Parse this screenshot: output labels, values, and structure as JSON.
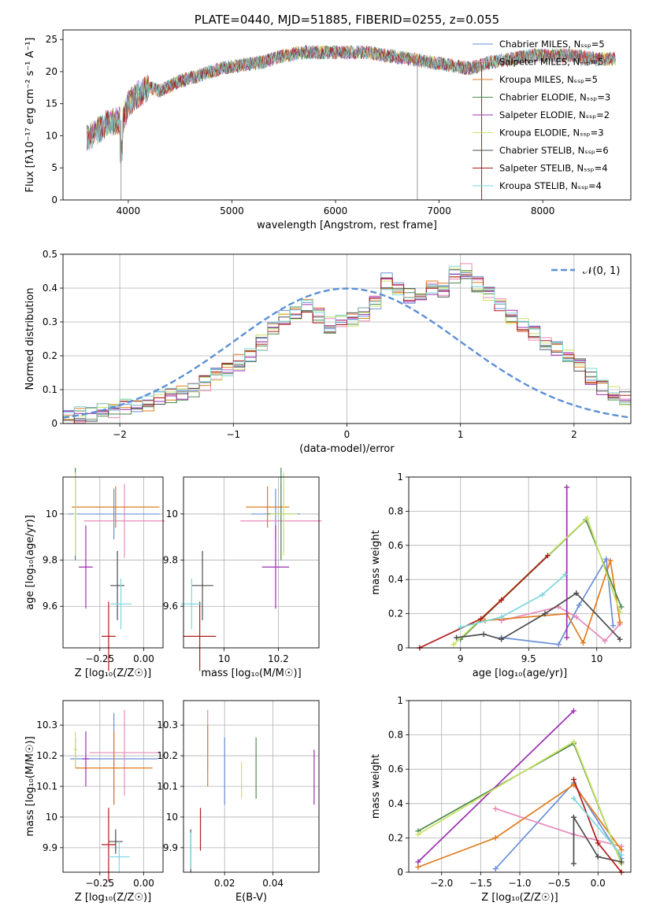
{
  "chart_data": [
    {
      "type": "line",
      "title": "PLATE=0440, MJD=51885, FIBERID=0255, z=0.055",
      "xlabel": "wavelength [Angstrom, rest frame]",
      "ylabel": "Flux [fλ10⁻¹⁷ erg cm⁻² s⁻¹ A⁻¹]",
      "xlim": [
        3370,
        8850
      ],
      "ylim": [
        0,
        26.5
      ],
      "xticks": [
        4000,
        5000,
        6000,
        7000,
        8000
      ],
      "yticks": [
        0,
        5,
        10,
        15,
        20,
        25
      ],
      "grid": false,
      "legend_position": "right",
      "series": [
        {
          "name": "Chabrier MILES, N_SSP=5",
          "color": "#6a8fd8"
        },
        {
          "name": "Salpeter MILES, N_SSP=5",
          "color": "#e88ab8"
        },
        {
          "name": "Kroupa MILES, N_SSP=5",
          "color": "#e07b1d"
        },
        {
          "name": "Chabrier ELODIE, N_SSP=3",
          "color": "#4e8a4e"
        },
        {
          "name": "Salpeter ELODIE, N_SSP=2",
          "color": "#9b30b0"
        },
        {
          "name": "Kroupa ELODIE, N_SSP=3",
          "color": "#c9e265"
        },
        {
          "name": "Chabrier STELIB, N_SSP=6",
          "color": "#4d4d4d"
        },
        {
          "name": "Salpeter STELIB, N_SSP=4",
          "color": "#b01c1c"
        },
        {
          "name": "Kroupa STELIB, N_SSP=4",
          "color": "#7fd7df"
        }
      ],
      "continuum": [
        [
          3600,
          9.5
        ],
        [
          3800,
          12
        ],
        [
          3950,
          12.5
        ],
        [
          4000,
          15
        ],
        [
          4100,
          16.5
        ],
        [
          4200,
          17.5
        ],
        [
          4300,
          17
        ],
        [
          4500,
          18.5
        ],
        [
          4700,
          19.5
        ],
        [
          4900,
          20.5
        ],
        [
          5100,
          21
        ],
        [
          5300,
          21.5
        ],
        [
          5500,
          22.5
        ],
        [
          5700,
          23
        ],
        [
          5900,
          23
        ],
        [
          6100,
          23
        ],
        [
          6300,
          23
        ],
        [
          6500,
          22.5
        ],
        [
          6700,
          22
        ],
        [
          6900,
          21.5
        ],
        [
          7100,
          21
        ],
        [
          7300,
          20.5
        ],
        [
          7500,
          21.5
        ],
        [
          7700,
          22
        ],
        [
          7900,
          22.5
        ],
        [
          8100,
          22.5
        ],
        [
          8300,
          22.5
        ],
        [
          8500,
          22
        ],
        [
          8700,
          22
        ]
      ],
      "spikes": [
        [
          3930,
          0
        ],
        [
          6790,
          0
        ],
        [
          7410,
          0
        ]
      ]
    },
    {
      "type": "bar",
      "xlabel": "(data-model)/error",
      "ylabel": "Normed distribution",
      "xlim": [
        -2.5,
        2.5
      ],
      "ylim": [
        0,
        0.5
      ],
      "xticks": [
        -2,
        -1,
        0,
        1,
        2
      ],
      "yticks": [
        0.0,
        0.1,
        0.2,
        0.3,
        0.4,
        0.5
      ],
      "grid": true,
      "legend_position": "upper right",
      "legend": "𝒩(0, 1)",
      "bin_width": 0.1,
      "histogram": [
        0.02,
        0.025,
        0.03,
        0.035,
        0.04,
        0.05,
        0.055,
        0.06,
        0.07,
        0.08,
        0.09,
        0.1,
        0.12,
        0.14,
        0.16,
        0.18,
        0.2,
        0.24,
        0.28,
        0.31,
        0.33,
        0.35,
        0.32,
        0.29,
        0.3,
        0.31,
        0.32,
        0.36,
        0.42,
        0.4,
        0.38,
        0.37,
        0.4,
        0.39,
        0.44,
        0.45,
        0.41,
        0.38,
        0.35,
        0.32,
        0.29,
        0.27,
        0.24,
        0.22,
        0.2,
        0.17,
        0.14,
        0.11,
        0.09,
        0.07
      ],
      "curve_color": "#5b8fd6"
    },
    {
      "type": "scatter",
      "xlabel": "Z [log₁₀(Z/Z☉)]",
      "ylabel": "age  [log₁₀(age/yr)]",
      "xlim": [
        -0.46,
        0.11
      ],
      "ylim": [
        9.42,
        10.16
      ],
      "xticks": [
        -0.25,
        0.0
      ],
      "xticklabels": [
        "−0.25",
        "0.00"
      ],
      "yticks": [
        9.6,
        9.8,
        10.0
      ],
      "grid": true,
      "points": [
        {
          "x": -0.17,
          "y": 10.0,
          "xerr": 0.26,
          "yerr": 0.11,
          "color": "#6a8fd8"
        },
        {
          "x": -0.11,
          "y": 9.97,
          "xerr": 0.23,
          "yerr": 0.16,
          "color": "#e88ab8"
        },
        {
          "x": -0.16,
          "y": 10.03,
          "xerr": 0.25,
          "yerr": 0.09,
          "color": "#e07b1d"
        },
        {
          "x": -0.39,
          "y": 10.0,
          "xerr": 0.0,
          "yerr": 0.2,
          "color": "#4e8a4e"
        },
        {
          "x": -0.33,
          "y": 9.77,
          "xerr": 0.04,
          "yerr": 0.18,
          "color": "#9b30b0"
        },
        {
          "x": -0.39,
          "y": 10.0,
          "xerr": 0.01,
          "yerr": 0.18,
          "color": "#c9e265"
        },
        {
          "x": -0.15,
          "y": 9.69,
          "xerr": 0.04,
          "yerr": 0.15,
          "color": "#4d4d4d"
        },
        {
          "x": -0.2,
          "y": 9.47,
          "xerr": 0.04,
          "yerr": 0.15,
          "color": "#b01c1c"
        },
        {
          "x": -0.13,
          "y": 9.61,
          "xerr": 0.06,
          "yerr": 0.11,
          "color": "#7fd7df"
        }
      ]
    },
    {
      "type": "scatter",
      "xlabel": "mass [log₁₀(M/M☉)]",
      "ylabel": "",
      "xlim": [
        9.85,
        10.35
      ],
      "ylim": [
        9.42,
        10.16
      ],
      "xticks": [
        10.0,
        10.2
      ],
      "yticks": [
        9.6,
        9.8,
        10.0
      ],
      "grid": true,
      "points": [
        {
          "x": 10.19,
          "y": 10.0,
          "xerr": 0.09,
          "yerr": 0.11,
          "color": "#6a8fd8"
        },
        {
          "x": 10.21,
          "y": 9.97,
          "xerr": 0.15,
          "yerr": 0.16,
          "color": "#e88ab8"
        },
        {
          "x": 10.16,
          "y": 10.03,
          "xerr": 0.08,
          "yerr": 0.09,
          "color": "#e07b1d"
        },
        {
          "x": 10.21,
          "y": 10.0,
          "xerr": 0.05,
          "yerr": 0.2,
          "color": "#4e8a4e"
        },
        {
          "x": 10.19,
          "y": 9.77,
          "xerr": 0.05,
          "yerr": 0.18,
          "color": "#9b30b0"
        },
        {
          "x": 10.22,
          "y": 10.0,
          "xerr": 0.05,
          "yerr": 0.18,
          "color": "#c9e265"
        },
        {
          "x": 9.92,
          "y": 9.69,
          "xerr": 0.04,
          "yerr": 0.15,
          "color": "#4d4d4d"
        },
        {
          "x": 9.91,
          "y": 9.47,
          "xerr": 0.06,
          "yerr": 0.15,
          "color": "#b01c1c"
        },
        {
          "x": 9.88,
          "y": 9.61,
          "xerr": 0.04,
          "yerr": 0.11,
          "color": "#7fd7df"
        }
      ]
    },
    {
      "type": "line",
      "xlabel": "age  [log₁₀(age/yr)]",
      "ylabel": "mass weight",
      "xlim": [
        8.62,
        10.25
      ],
      "ylim": [
        0.0,
        1.0
      ],
      "xticks": [
        9.0,
        9.5,
        10.0
      ],
      "yticks": [
        0.0,
        0.2,
        0.4,
        0.6,
        0.8,
        1.0
      ],
      "grid": true,
      "series": [
        {
          "color": "#6a8fd8",
          "points": [
            [
              9.3,
              0.06
            ],
            [
              9.72,
              0.02
            ],
            [
              9.87,
              0.25
            ],
            [
              10.07,
              0.52
            ],
            [
              10.12,
              0.13
            ]
          ]
        },
        {
          "color": "#e88ab8",
          "points": [
            [
              9.3,
              0.16
            ],
            [
              9.72,
              0.24
            ],
            [
              9.85,
              0.18
            ],
            [
              10.06,
              0.04
            ],
            [
              10.17,
              0.14
            ]
          ]
        },
        {
          "color": "#e07b1d",
          "points": [
            [
              9.18,
              0.16
            ],
            [
              9.78,
              0.2
            ],
            [
              9.9,
              0.03
            ],
            [
              10.1,
              0.51
            ],
            [
              10.17,
              0.15
            ]
          ]
        },
        {
          "color": "#4e8a4e",
          "points": [
            [
              9.0,
              0.05
            ],
            [
              9.92,
              0.75
            ],
            [
              10.18,
              0.24
            ]
          ]
        },
        {
          "color": "#9b30b0",
          "points": [
            [
              9.78,
              0.94
            ],
            [
              9.78,
              0.06
            ]
          ]
        },
        {
          "color": "#c9e265",
          "points": [
            [
              8.95,
              0.02
            ],
            [
              9.93,
              0.76
            ],
            [
              10.17,
              0.21
            ]
          ]
        },
        {
          "color": "#4d4d4d",
          "points": [
            [
              8.97,
              0.06
            ],
            [
              9.17,
              0.08
            ],
            [
              9.3,
              0.05
            ],
            [
              9.62,
              0.2
            ],
            [
              9.85,
              0.32
            ],
            [
              10.17,
              0.05
            ]
          ]
        },
        {
          "color": "#b01c1c",
          "points": [
            [
              8.7,
              0.0
            ],
            [
              9.15,
              0.17
            ],
            [
              9.3,
              0.28
            ],
            [
              9.64,
              0.54
            ]
          ]
        },
        {
          "color": "#7fd7df",
          "points": [
            [
              9.0,
              0.12
            ],
            [
              9.3,
              0.18
            ],
            [
              9.6,
              0.31
            ],
            [
              9.77,
              0.43
            ]
          ]
        }
      ]
    },
    {
      "type": "scatter",
      "xlabel": "Z [log₁₀(Z/Z☉)]",
      "ylabel": "mass [log₁₀(M/M☉)]",
      "xlim": [
        -0.46,
        0.11
      ],
      "ylim": [
        9.82,
        10.38
      ],
      "xticks": [
        -0.25,
        0.0
      ],
      "xticklabels": [
        "−0.25",
        "0.00"
      ],
      "yticks": [
        9.9,
        10.0,
        10.1,
        10.2,
        10.3
      ],
      "grid": true,
      "points": [
        {
          "x": -0.17,
          "y": 10.19,
          "xerr": 0.25,
          "yerr": 0.15,
          "color": "#6a8fd8"
        },
        {
          "x": -0.11,
          "y": 10.21,
          "xerr": 0.2,
          "yerr": 0.14,
          "color": "#e88ab8"
        },
        {
          "x": -0.17,
          "y": 10.16,
          "xerr": 0.22,
          "yerr": 0.12,
          "color": "#e07b1d"
        },
        {
          "x": -0.39,
          "y": 10.21,
          "xerr": 0.0,
          "yerr": 0.05,
          "color": "#4e8a4e"
        },
        {
          "x": -0.33,
          "y": 10.19,
          "xerr": 0.02,
          "yerr": 0.09,
          "color": "#9b30b0"
        },
        {
          "x": -0.39,
          "y": 10.22,
          "xerr": 0.01,
          "yerr": 0.06,
          "color": "#c9e265"
        },
        {
          "x": -0.16,
          "y": 9.92,
          "xerr": 0.04,
          "yerr": 0.04,
          "color": "#4d4d4d"
        },
        {
          "x": -0.2,
          "y": 9.91,
          "xerr": 0.04,
          "yerr": 0.12,
          "color": "#b01c1c"
        },
        {
          "x": -0.14,
          "y": 9.87,
          "xerr": 0.06,
          "yerr": 0.05,
          "color": "#7fd7df"
        }
      ]
    },
    {
      "type": "scatter",
      "xlabel": "E(B-V)",
      "ylabel": "",
      "xlim": [
        0.003,
        0.059
      ],
      "ylim": [
        9.82,
        10.38
      ],
      "xticks": [
        0.02,
        0.04
      ],
      "yticks": [
        9.9,
        10.0,
        10.1,
        10.2,
        10.3
      ],
      "grid": true,
      "points": [
        {
          "x": 0.02,
          "y": 10.15,
          "xerr": 0.0,
          "yerr": 0.11,
          "color": "#6a8fd8"
        },
        {
          "x": 0.013,
          "y": 10.25,
          "xerr": 0.0,
          "yerr": 0.1,
          "color": "#e88ab8"
        },
        {
          "x": 0.013,
          "y": 10.2,
          "xerr": 0.0,
          "yerr": 0.1,
          "color": "#e07b1d"
        },
        {
          "x": 0.033,
          "y": 10.16,
          "xerr": 0.0,
          "yerr": 0.1,
          "color": "#4e8a4e"
        },
        {
          "x": 0.057,
          "y": 10.13,
          "xerr": 0.0,
          "yerr": 0.09,
          "color": "#9b30b0"
        },
        {
          "x": 0.027,
          "y": 10.12,
          "xerr": 0.0,
          "yerr": 0.06,
          "color": "#c9e265"
        },
        {
          "x": 0.006,
          "y": 9.89,
          "xerr": 0.0,
          "yerr": 0.07,
          "color": "#4d4d4d"
        },
        {
          "x": 0.01,
          "y": 9.96,
          "xerr": 0.0,
          "yerr": 0.07,
          "color": "#b01c1c"
        },
        {
          "x": 0.006,
          "y": 9.89,
          "xerr": 0.0,
          "yerr": 0.06,
          "color": "#7fd7df"
        }
      ]
    },
    {
      "type": "line",
      "xlabel": "Z [log₁₀(Z/Z☉)]",
      "ylabel": "mass weight",
      "xlim": [
        -2.42,
        0.42
      ],
      "ylim": [
        0.0,
        1.0
      ],
      "xticks": [
        -2.0,
        -1.5,
        -1.0,
        -0.5,
        0.0
      ],
      "xticklabels": [
        "−2.0",
        "−1.5",
        "−1.0",
        "−0.5",
        "0.0"
      ],
      "yticks": [
        0.0,
        0.2,
        0.4,
        0.6,
        0.8,
        1.0
      ],
      "grid": true,
      "series": [
        {
          "color": "#6a8fd8",
          "points": [
            [
              -1.31,
              0.02
            ],
            [
              -0.31,
              0.52
            ],
            [
              0.3,
              0.08
            ]
          ]
        },
        {
          "color": "#e88ab8",
          "points": [
            [
              -1.31,
              0.37
            ],
            [
              -0.31,
              0.22
            ],
            [
              0.3,
              0.15
            ]
          ]
        },
        {
          "color": "#e07b1d",
          "points": [
            [
              -2.3,
              0.03
            ],
            [
              -1.31,
              0.2
            ],
            [
              -0.31,
              0.51
            ],
            [
              0.3,
              0.13
            ]
          ]
        },
        {
          "color": "#4e8a4e",
          "points": [
            [
              -2.3,
              0.24
            ],
            [
              -0.31,
              0.75
            ],
            [
              0.3,
              0.05
            ]
          ]
        },
        {
          "color": "#9b30b0",
          "points": [
            [
              -2.3,
              0.06
            ],
            [
              -0.31,
              0.94
            ]
          ]
        },
        {
          "color": "#c9e265",
          "points": [
            [
              -2.3,
              0.22
            ],
            [
              -0.31,
              0.76
            ],
            [
              0.3,
              0.05
            ]
          ]
        },
        {
          "color": "#4d4d4d",
          "points": [
            [
              -0.31,
              0.05
            ],
            [
              -0.31,
              0.32
            ],
            [
              0.0,
              0.09
            ],
            [
              0.3,
              0.06
            ]
          ]
        },
        {
          "color": "#b01c1c",
          "points": [
            [
              -0.31,
              0.54
            ],
            [
              0.0,
              0.17
            ],
            [
              0.3,
              0.0
            ]
          ]
        },
        {
          "color": "#7fd7df",
          "points": [
            [
              -0.31,
              0.43
            ],
            [
              0.3,
              0.1
            ]
          ]
        }
      ]
    }
  ]
}
